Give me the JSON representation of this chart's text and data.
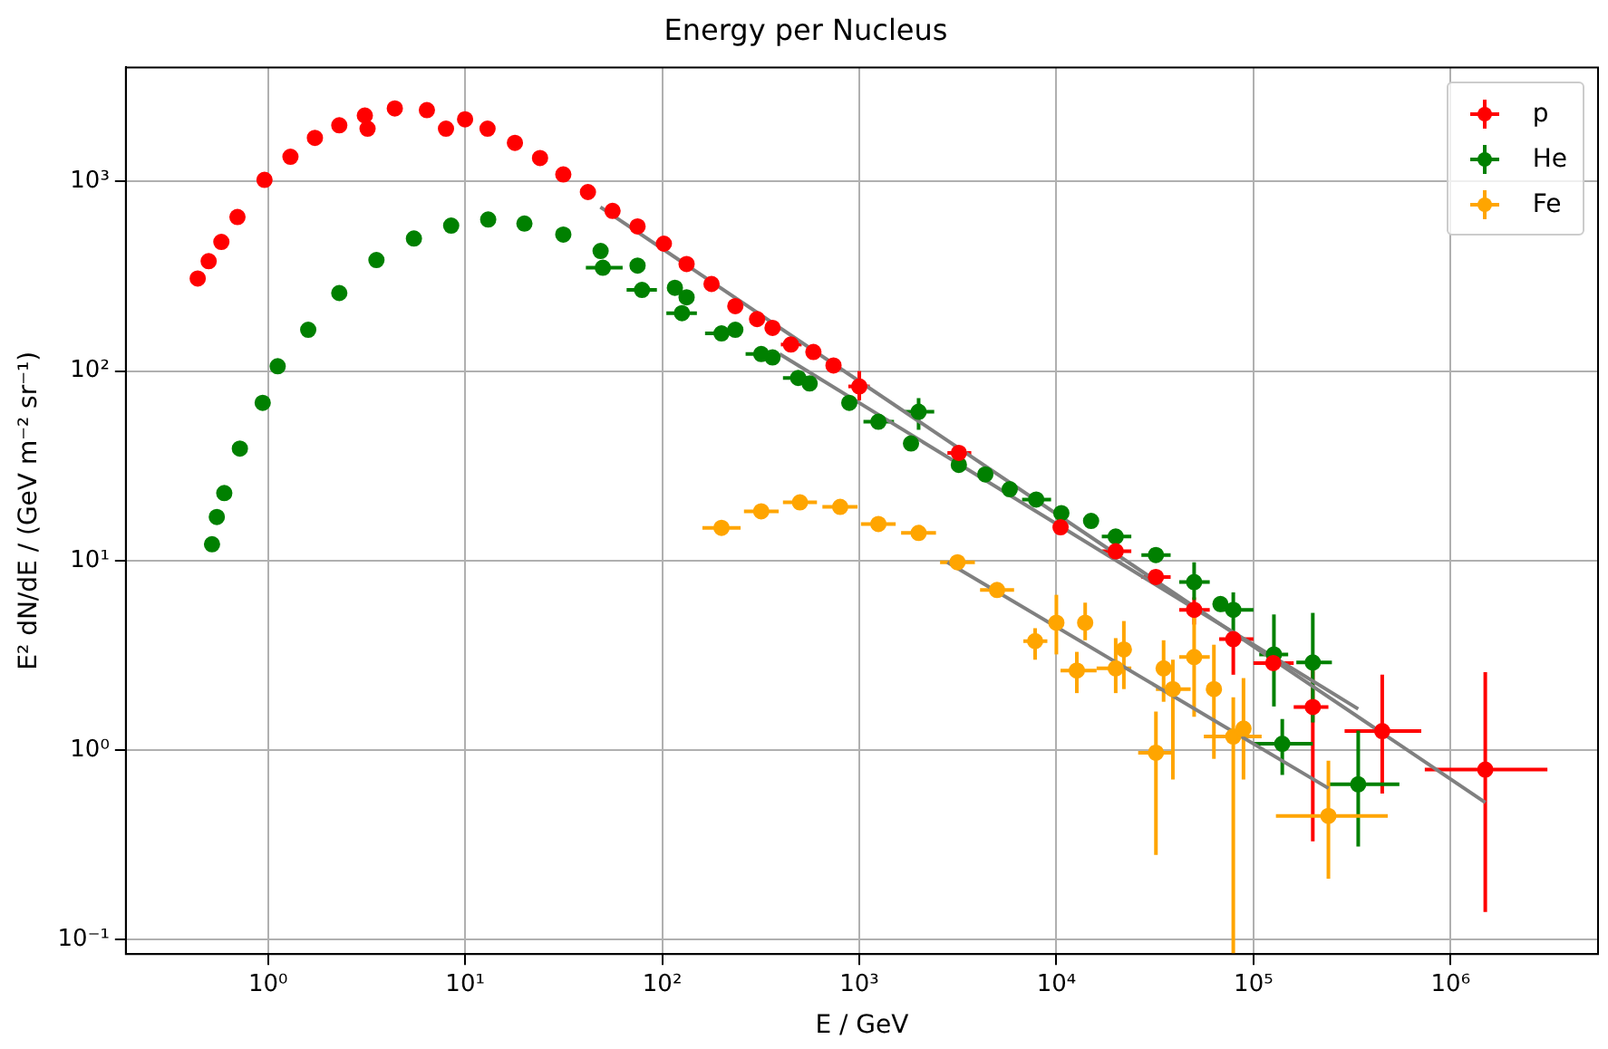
{
  "chart_data": {
    "type": "scatter",
    "title": "Energy per Nucleus",
    "xlabel": "E / GeV",
    "ylabel": "E² dN/dE / (GeV m⁻² sr⁻¹)",
    "log": "xy",
    "grid": true,
    "legend": "top right",
    "marker": "circle",
    "xlim": [
      0.19,
      5600000
    ],
    "ylim": [
      0.084,
      4000
    ],
    "xticks": [
      {
        "value": 1,
        "label": "10⁰"
      },
      {
        "value": 10,
        "label": "10¹"
      },
      {
        "value": 100,
        "label": "10²"
      },
      {
        "value": 1000,
        "label": "10³"
      },
      {
        "value": 10000,
        "label": "10⁴"
      },
      {
        "value": 100000,
        "label": "10⁵"
      },
      {
        "value": 1000000,
        "label": "10⁶"
      }
    ],
    "yticks": [
      {
        "value": 0.1,
        "label": "10⁻¹"
      },
      {
        "value": 1,
        "label": "10⁰"
      },
      {
        "value": 10,
        "label": "10¹"
      },
      {
        "value": 100,
        "label": "10²"
      },
      {
        "value": 1000,
        "label": "10³"
      }
    ],
    "series": [
      {
        "name": "p",
        "color": "#ff0000",
        "x": [
          0.44,
          0.5,
          0.58,
          0.7,
          0.96,
          1.3,
          1.73,
          2.3,
          3.1,
          3.2,
          4.4,
          6.4,
          8,
          10,
          13,
          17.9,
          24,
          31.5,
          42,
          56,
          75,
          102,
          133,
          178,
          235,
          303,
          363,
          450,
          585,
          740,
          1000,
          3200,
          10500,
          20000,
          32000,
          50000,
          79000,
          126000,
          200000,
          450000,
          1500000
        ],
        "values": [
          308,
          380,
          480,
          650,
          1020,
          1350,
          1700,
          1980,
          2230,
          1900,
          2430,
          2380,
          1900,
          2130,
          1900,
          1600,
          1330,
          1090,
          880,
          700,
          580,
          470,
          367,
          288,
          220,
          188,
          169,
          138,
          126,
          107,
          83,
          37,
          15,
          11.2,
          8.2,
          5.5,
          3.85,
          2.88,
          1.69,
          1.26,
          0.79
        ],
        "errors": [
          null,
          null,
          null,
          null,
          null,
          null,
          null,
          null,
          null,
          null,
          null,
          null,
          null,
          null,
          null,
          null,
          null,
          null,
          null,
          null,
          null,
          null,
          null,
          null,
          null,
          null,
          null,
          null,
          null,
          null,
          [
            70,
            100
          ],
          null,
          null,
          null,
          null,
          [
            4.6,
            6.4
          ],
          [
            2.5,
            4.0
          ],
          null,
          [
            0.33,
            3.0
          ],
          [
            0.59,
            2.5
          ],
          [
            0.14,
            2.58
          ]
        ],
        "xerrors": [
          null,
          null,
          null,
          null,
          null,
          null,
          null,
          null,
          null,
          null,
          null,
          null,
          null,
          null,
          null,
          null,
          null,
          null,
          null,
          null,
          null,
          null,
          null,
          null,
          null,
          null,
          null,
          [
            400,
            510
          ],
          null,
          null,
          [
            880,
            1130
          ],
          [
            2800,
            3700
          ],
          null,
          [
            17000,
            24000
          ],
          [
            27000,
            38000
          ],
          [
            42000,
            60000
          ],
          [
            67000,
            100000
          ],
          [
            100000,
            160000
          ],
          [
            160000,
            240000
          ],
          [
            290000,
            710000
          ],
          [
            740000,
            3100000
          ]
        ]
      },
      {
        "name": "He",
        "color": "#008000",
        "x": [
          0.52,
          0.55,
          0.6,
          0.72,
          0.94,
          1.12,
          1.6,
          2.3,
          3.55,
          5.5,
          8.5,
          13.1,
          20,
          31.5,
          48.7,
          75,
          116,
          133,
          235,
          363,
          560,
          890,
          50,
          79,
          126,
          200,
          318,
          490,
          1250,
          2000,
          1830,
          3200,
          4360,
          5800,
          7900,
          10600,
          15000,
          20000,
          32000,
          50000,
          68000,
          79000,
          127000,
          200000,
          140000,
          340000
        ],
        "values": [
          12.2,
          17,
          22.7,
          39,
          68,
          106,
          165,
          258,
          385,
          500,
          585,
          630,
          600,
          525,
          430,
          360,
          275,
          245,
          165,
          118,
          86,
          68,
          351,
          268,
          202,
          158,
          123,
          92,
          54,
          61,
          41.5,
          32,
          28.5,
          23.8,
          21,
          17.8,
          16.2,
          13.4,
          10.7,
          7.7,
          5.9,
          5.5,
          3.2,
          2.9,
          1.08,
          0.66
        ],
        "errors": [
          null,
          null,
          null,
          null,
          null,
          null,
          null,
          null,
          null,
          null,
          null,
          null,
          null,
          null,
          null,
          null,
          null,
          null,
          null,
          null,
          null,
          null,
          null,
          null,
          null,
          null,
          null,
          null,
          null,
          [
            49,
            72
          ],
          null,
          null,
          null,
          null,
          null,
          null,
          null,
          null,
          null,
          [
            6.2,
            9.8
          ],
          null,
          [
            4.2,
            6.8
          ],
          [
            1.7,
            5.2
          ],
          [
            1.4,
            5.3
          ],
          [
            0.74,
            1.46
          ],
          [
            0.31,
            1.27
          ]
        ],
        "xerrors": [
          null,
          null,
          null,
          null,
          null,
          null,
          null,
          null,
          null,
          null,
          null,
          null,
          null,
          null,
          null,
          null,
          null,
          null,
          null,
          null,
          null,
          null,
          [
            41,
            63
          ],
          [
            66,
            94
          ],
          [
            105,
            150
          ],
          [
            165,
            240
          ],
          [
            265,
            380
          ],
          [
            410,
            590
          ],
          [
            1050,
            1500
          ],
          [
            1700,
            2400
          ],
          null,
          null,
          null,
          null,
          [
            6700,
            9400
          ],
          null,
          null,
          [
            17000,
            24000
          ],
          [
            27000,
            38000
          ],
          [
            42000,
            60000
          ],
          null,
          [
            67000,
            100000
          ],
          [
            107000,
            150000
          ],
          [
            165000,
            250000
          ],
          [
            100000,
            200000
          ],
          [
            240000,
            550000
          ]
        ]
      },
      {
        "name": "Fe",
        "color": "#ffa500",
        "x": [
          200,
          318,
          500,
          800,
          1250,
          2000,
          3150,
          5000,
          7800,
          10000,
          12700,
          14000,
          20000,
          22000,
          32000,
          35000,
          39000,
          50000,
          63000,
          79000,
          89000,
          240000
        ],
        "values": [
          14.9,
          18.2,
          20.3,
          19.2,
          15.6,
          14,
          9.8,
          7.0,
          3.76,
          4.7,
          2.63,
          4.7,
          2.7,
          3.4,
          0.97,
          2.7,
          2.1,
          3.1,
          2.1,
          1.18,
          1.3,
          0.45
        ],
        "errors": [
          null,
          null,
          null,
          null,
          null,
          null,
          null,
          null,
          [
            3.0,
            4.4
          ],
          [
            3.2,
            6.6
          ],
          [
            2.0,
            3.3
          ],
          [
            3.8,
            6.0
          ],
          [
            2.0,
            3.9
          ],
          [
            2.1,
            4.8
          ],
          [
            0.28,
            1.6
          ],
          [
            1.8,
            3.8
          ],
          [
            0.7,
            3.0
          ],
          [
            1.5,
            5.6
          ],
          [
            0.9,
            3.6
          ],
          [
            0.084,
            1.9
          ],
          [
            0.7,
            2.4
          ],
          [
            0.21,
            0.88
          ]
        ],
        "xerrors": [
          [
            160,
            250
          ],
          [
            260,
            390
          ],
          [
            410,
            610
          ],
          [
            650,
            980
          ],
          [
            1020,
            1530
          ],
          [
            1630,
            2450
          ],
          [
            2570,
            3860
          ],
          [
            4100,
            6100
          ],
          [
            6800,
            9000
          ],
          null,
          [
            10500,
            16000
          ],
          null,
          [
            16000,
            24000
          ],
          null,
          [
            26000,
            39000
          ],
          null,
          [
            32000,
            48000
          ],
          [
            42000,
            60000
          ],
          null,
          [
            56000,
            110000
          ],
          null,
          [
            130000,
            480000
          ]
        ]
      },
      {
        "type": "line",
        "marker": "none",
        "color": "#808080",
        "x": [
          48.6,
          1500000
        ],
        "values": [
          733,
          0.53
        ]
      },
      {
        "type": "line",
        "marker": "none",
        "color": "#808080",
        "x": [
          394,
          340000
        ],
        "values": [
          123,
          1.65
        ]
      },
      {
        "type": "line",
        "marker": "none",
        "color": "#808080",
        "x": [
          2800,
          240000
        ],
        "values": [
          9.8,
          0.63
        ]
      }
    ]
  }
}
